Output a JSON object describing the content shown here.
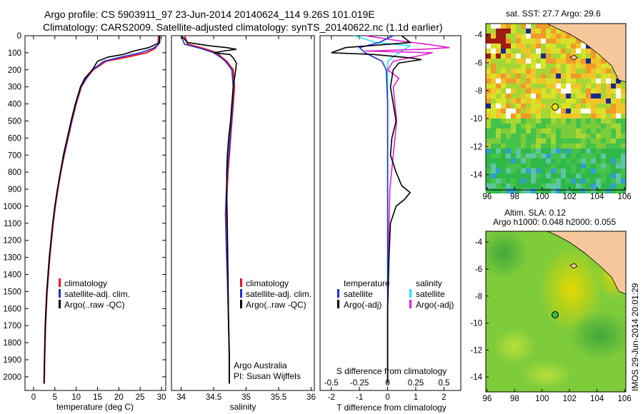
{
  "header": {
    "line1": "Argo profile: CS 5903911_97 23-Jun-2014 20140624_114 9.26S 101.019E",
    "line2": "Climatology: CARS2009. Satellite-adjusted climatology: synTS_20140622.nc (1.1d earlier)"
  },
  "colors": {
    "climatology": "#e8141c",
    "satellite_adj": "#1d2fd6",
    "argo": "#000000",
    "sal_satellite": "#22e5ea",
    "sal_argo": "#e020d0",
    "land": "#f7c89b",
    "map_ocean": "#4fc34f"
  },
  "panel_temp": {
    "xlabel": "temperature (deg C)",
    "xticks": [
      "0",
      "5",
      "10",
      "15",
      "20",
      "25",
      "30"
    ],
    "legend": [
      "climatology",
      "satellite-adj. clim.",
      "Argo(..raw -QC)"
    ]
  },
  "panel_sal": {
    "xlabel": "salinity",
    "xticks": [
      "34",
      "34.5",
      "35",
      "35.5",
      "36"
    ],
    "legend": [
      "climatology",
      "satellite-adj. clim.",
      "Argo(..raw -QC)"
    ],
    "credit1": "Argo Australia",
    "credit2": "PI: Susan Wijffels"
  },
  "panel_diff": {
    "legend_t_head": "temperature",
    "legend_t": [
      "satellite",
      "Argo(-adj)"
    ],
    "legend_s_head": "salinity",
    "legend_s": [
      "satellite",
      "Argo(-adj)"
    ],
    "s_label": "S difference from climatology",
    "s_ticks": [
      "-0.5",
      "-0.25",
      "0",
      "0.25",
      "0.5"
    ],
    "t_ticks": [
      "-2",
      "-1",
      "0",
      "1",
      "2"
    ],
    "xlabel": "T difference from climatology"
  },
  "yaxis": {
    "ticks": [
      "0",
      "100",
      "200",
      "300",
      "400",
      "500",
      "600",
      "700",
      "800",
      "900",
      "1000",
      "1100",
      "1200",
      "1300",
      "1400",
      "1500",
      "1600",
      "1700",
      "1800",
      "1900",
      "2000"
    ]
  },
  "map_sst": {
    "title": "sat. SST: 27.7  Argo: 29.6",
    "yticks": [
      "-4",
      "-6",
      "-8",
      "-10",
      "-12",
      "-14"
    ],
    "xticks": [
      "96",
      "98",
      "100",
      "102",
      "104",
      "106"
    ],
    "float_lon": 101.019,
    "float_lat": -9.26
  },
  "map_sla": {
    "title1": "Altim. SLA: 0.12",
    "title2": "Argo h1000: 0.048 h2000: 0.055",
    "yticks": [
      "-4",
      "-6",
      "-8",
      "-10",
      "-12",
      "-14"
    ],
    "xticks": [
      "96",
      "98",
      "100",
      "102",
      "104",
      "106"
    ],
    "float_lon": 101.019,
    "float_lat": -9.26
  },
  "stamp": "IMOS 29-Jun-2014 20:01:29",
  "chart_data": [
    {
      "type": "line",
      "panel": "temperature",
      "xlabel": "temperature (deg C)",
      "ylabel": "",
      "xlim": [
        -2,
        31
      ],
      "ylim": [
        2080,
        0
      ],
      "series": [
        {
          "name": "climatology",
          "x": [
            29.3,
            29.2,
            28.5,
            26.5,
            22.0,
            17.0,
            14.0,
            12.4,
            11.2,
            10.0,
            9.0,
            8.1,
            7.2,
            6.4,
            5.7,
            5.1,
            4.6,
            4.2,
            3.8,
            3.5,
            3.2,
            3.0,
            2.8,
            2.6,
            2.5
          ],
          "y": [
            0,
            50,
            75,
            100,
            125,
            150,
            200,
            250,
            300,
            400,
            500,
            600,
            700,
            800,
            900,
            1000,
            1100,
            1200,
            1300,
            1400,
            1500,
            1600,
            1700,
            1900,
            2040
          ]
        },
        {
          "name": "satellite-adj. clim.",
          "x": [
            29.5,
            29.4,
            28.0,
            25.0,
            20.5,
            16.5,
            13.8,
            12.3,
            11.1,
            9.9,
            8.9,
            8.0,
            7.1,
            6.3,
            5.6,
            5.0,
            4.5,
            4.1,
            3.7,
            3.4,
            3.1,
            2.9,
            2.7,
            2.55,
            2.45
          ],
          "y": [
            0,
            50,
            75,
            100,
            125,
            150,
            200,
            250,
            300,
            400,
            500,
            600,
            700,
            800,
            900,
            1000,
            1100,
            1200,
            1300,
            1400,
            1500,
            1600,
            1700,
            1900,
            2040
          ]
        },
        {
          "name": "Argo(..raw -QC)",
          "x": [
            29.6,
            29.6,
            27.0,
            23.5,
            21.0,
            17.5,
            15.0,
            13.8,
            12.0,
            11.0,
            9.8,
            8.8,
            7.9,
            7.0,
            6.3,
            5.6,
            5.0,
            4.5,
            4.1,
            3.7,
            3.4,
            3.1,
            2.9,
            2.7,
            2.55,
            2.45
          ],
          "y": [
            0,
            40,
            70,
            90,
            110,
            125,
            150,
            200,
            250,
            300,
            400,
            500,
            600,
            700,
            800,
            900,
            1000,
            1100,
            1200,
            1300,
            1400,
            1500,
            1600,
            1750,
            1900,
            2040
          ]
        }
      ],
      "legend": "lower-center"
    },
    {
      "type": "line",
      "panel": "salinity",
      "xlabel": "salinity",
      "ylabel": "",
      "xlim": [
        33.85,
        36.05
      ],
      "ylim": [
        2080,
        0
      ],
      "series": [
        {
          "name": "climatology",
          "x": [
            34.05,
            34.1,
            34.35,
            34.55,
            34.62,
            34.7,
            34.8,
            34.82,
            34.8,
            34.76,
            34.72,
            34.7,
            34.69,
            34.69,
            34.7,
            34.71,
            34.72,
            34.73,
            34.74,
            34.74,
            34.74
          ],
          "y": [
            0,
            50,
            75,
            100,
            125,
            150,
            200,
            300,
            400,
            600,
            800,
            950,
            1050,
            1150,
            1300,
            1400,
            1550,
            1700,
            1850,
            1950,
            2040
          ]
        },
        {
          "name": "satellite-adj. clim.",
          "x": [
            34.0,
            34.05,
            34.3,
            34.5,
            34.6,
            34.68,
            34.78,
            34.8,
            34.79,
            34.75,
            34.71,
            34.69,
            34.68,
            34.69,
            34.7,
            34.71,
            34.72,
            34.73,
            34.74,
            34.74,
            34.74
          ],
          "y": [
            0,
            50,
            75,
            100,
            125,
            150,
            200,
            300,
            400,
            600,
            800,
            950,
            1050,
            1150,
            1300,
            1400,
            1550,
            1700,
            1850,
            1950,
            2040
          ]
        },
        {
          "name": "Argo(..raw -QC)",
          "x": [
            34.0,
            34.1,
            34.45,
            34.7,
            34.85,
            34.65,
            34.5,
            34.75,
            34.8,
            34.85,
            34.84,
            34.82,
            34.8,
            34.78,
            34.76,
            34.73,
            34.71,
            34.7,
            34.7,
            34.71,
            34.72,
            34.73,
            34.74,
            34.74
          ],
          "y": [
            0,
            40,
            60,
            70,
            80,
            90,
            100,
            110,
            130,
            160,
            200,
            250,
            300,
            400,
            500,
            600,
            700,
            800,
            900,
            1100,
            1400,
            1700,
            1900,
            2040
          ]
        }
      ],
      "legend": "lower-center"
    },
    {
      "type": "line",
      "panel": "difference",
      "xlabel": "T difference from climatology",
      "x2label": "S difference from climatology",
      "xlim": [
        -2.4,
        2.6
      ],
      "x2lim": [
        -0.6,
        0.65
      ],
      "ylim": [
        2080,
        0
      ],
      "series": [
        {
          "name": "temperature satellite",
          "axis": "T",
          "x": [
            0.2,
            -0.3,
            -1.0,
            -0.8,
            -0.2,
            -0.05,
            0.0,
            0.0,
            0.0,
            0.0,
            0.0
          ],
          "y": [
            0,
            40,
            70,
            100,
            150,
            200,
            400,
            800,
            1200,
            1600,
            2040
          ]
        },
        {
          "name": "temperature Argo(-adj)",
          "axis": "T",
          "x": [
            0.5,
            0.8,
            -1.5,
            -2.0,
            -0.5,
            0.8,
            1.2,
            0.4,
            0.2,
            0.1,
            0.3,
            0.15,
            0.1,
            0.3,
            0.5,
            0.8,
            0.6,
            0.3,
            0.1,
            0.05,
            0.0,
            0.0
          ],
          "y": [
            0,
            40,
            70,
            100,
            110,
            130,
            140,
            160,
            200,
            300,
            500,
            600,
            700,
            800,
            880,
            920,
            960,
            1000,
            1100,
            1300,
            1600,
            2040
          ]
        },
        {
          "name": "salinity satellite",
          "axis": "S",
          "x": [
            -0.3,
            -0.1,
            0.2,
            0.1,
            0.0,
            0.0,
            0.0,
            0.0,
            0.0,
            0.0
          ],
          "y": [
            0,
            40,
            60,
            100,
            150,
            200,
            500,
            1000,
            1500,
            2040
          ]
        },
        {
          "name": "salinity Argo(-adj)",
          "axis": "S",
          "x": [
            -0.2,
            0.1,
            0.35,
            0.55,
            0.3,
            -0.2,
            0.4,
            0.05,
            0.0,
            0.1,
            0.05,
            0.08,
            0.05,
            0.02,
            0.01,
            0.0,
            0.0
          ],
          "y": [
            0,
            30,
            50,
            70,
            80,
            90,
            100,
            150,
            200,
            250,
            300,
            500,
            700,
            900,
            1200,
            1600,
            2040
          ]
        }
      ],
      "legend": "lower-center"
    }
  ]
}
